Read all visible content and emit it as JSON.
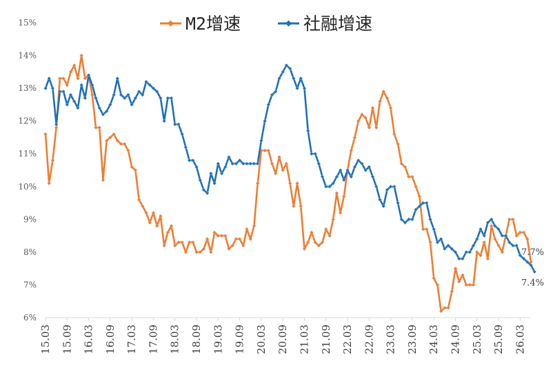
{
  "chart_data": {
    "type": "line",
    "title": "",
    "xlabel": "",
    "ylabel": "",
    "ylim": [
      6,
      15
    ],
    "yticks": [
      6,
      7,
      8,
      9,
      10,
      11,
      12,
      13,
      14,
      15
    ],
    "ytick_labels": [
      "6%",
      "7%",
      "8%",
      "9%",
      "10%",
      "11%",
      "12%",
      "13%",
      "14%",
      "15%"
    ],
    "x_start": "2015-03",
    "x_end": "2026-06",
    "xtick_labels": [
      "15.03",
      "15.09",
      "16.03",
      "16.09",
      "17.03",
      "17.09",
      "18.03",
      "18.09",
      "19.03",
      "19.09",
      "20.03",
      "20.09",
      "21.03",
      "21.09",
      "22.03",
      "22.09",
      "23.03",
      "23.09",
      "24.03",
      "24.09",
      "25.03",
      "25.09",
      "26.03"
    ],
    "legend_position": "top-center",
    "grid": false,
    "series": [
      {
        "name": "M2增速",
        "color": "#ED7D31",
        "end_label": "7.7%",
        "values": [
          11.6,
          10.1,
          10.8,
          11.8,
          13.3,
          13.3,
          13.1,
          13.5,
          13.7,
          13.3,
          14.0,
          13.3,
          13.4,
          12.8,
          11.8,
          11.8,
          10.2,
          11.4,
          11.5,
          11.6,
          11.4,
          11.3,
          11.3,
          11.1,
          10.6,
          10.5,
          9.6,
          9.4,
          9.2,
          8.9,
          9.2,
          8.8,
          9.1,
          8.2,
          8.6,
          8.8,
          8.2,
          8.3,
          8.3,
          8.0,
          8.3,
          8.3,
          8.0,
          8.0,
          8.1,
          8.4,
          8.0,
          8.6,
          8.5,
          8.5,
          8.5,
          8.1,
          8.2,
          8.4,
          8.4,
          8.2,
          8.7,
          8.4,
          8.8,
          10.1,
          11.1,
          11.1,
          11.1,
          10.7,
          10.4,
          10.9,
          10.5,
          10.7,
          10.1,
          9.4,
          10.1,
          9.4,
          8.1,
          8.3,
          8.6,
          8.3,
          8.2,
          8.3,
          8.7,
          8.5,
          9.0,
          9.8,
          9.2,
          9.7,
          10.5,
          11.1,
          11.5,
          12.0,
          12.2,
          12.1,
          11.8,
          12.4,
          11.8,
          12.6,
          12.9,
          12.7,
          12.4,
          11.6,
          11.3,
          10.7,
          10.6,
          10.3,
          10.3,
          10.0,
          9.7,
          8.7,
          8.7,
          8.3,
          7.2,
          7.0,
          6.2,
          6.3,
          6.3,
          6.8,
          7.5,
          7.1,
          7.3,
          7.0,
          7.0,
          7.0,
          8.0,
          7.9,
          8.3,
          7.8,
          8.8,
          8.4,
          8.2,
          8.0,
          8.5,
          9.0,
          9.0,
          8.5,
          8.6,
          8.6,
          8.4,
          7.7
        ]
      },
      {
        "name": "社融增速",
        "color": "#1F6FB5",
        "end_label": "7.4%",
        "values": [
          13.0,
          13.3,
          13.0,
          11.9,
          12.9,
          12.9,
          12.5,
          12.8,
          12.6,
          12.4,
          13.1,
          12.7,
          13.4,
          13.1,
          12.7,
          12.4,
          12.2,
          12.3,
          12.5,
          12.8,
          13.3,
          12.8,
          12.7,
          12.8,
          12.5,
          12.7,
          12.9,
          12.8,
          13.2,
          13.1,
          13.0,
          12.9,
          12.7,
          12.0,
          12.7,
          12.7,
          11.9,
          11.9,
          11.6,
          11.2,
          10.8,
          10.8,
          10.6,
          10.2,
          9.9,
          9.8,
          10.4,
          10.1,
          10.7,
          10.4,
          10.6,
          10.9,
          10.7,
          10.7,
          10.8,
          10.7,
          10.7,
          10.7,
          10.7,
          10.7,
          11.4,
          12.0,
          12.5,
          12.8,
          12.9,
          13.3,
          13.5,
          13.7,
          13.6,
          13.3,
          13.0,
          13.3,
          13.0,
          11.7,
          11.0,
          11.0,
          10.7,
          10.3,
          10.0,
          10.0,
          10.1,
          10.3,
          10.5,
          10.2,
          10.5,
          10.3,
          10.6,
          10.8,
          10.7,
          10.5,
          10.6,
          10.3,
          10.0,
          9.6,
          9.4,
          9.9,
          10.0,
          10.0,
          9.5,
          9.0,
          8.9,
          9.0,
          9.0,
          9.3,
          9.4,
          9.5,
          9.5,
          9.0,
          8.7,
          8.3,
          8.4,
          8.1,
          8.2,
          8.1,
          8.0,
          7.8,
          7.8,
          8.0,
          8.0,
          8.2,
          8.4,
          8.7,
          8.5,
          8.9,
          9.0,
          8.8,
          8.7,
          8.5,
          8.5,
          8.3,
          8.2,
          8.2,
          7.9,
          7.8,
          7.7,
          7.6,
          7.4
        ]
      }
    ]
  }
}
